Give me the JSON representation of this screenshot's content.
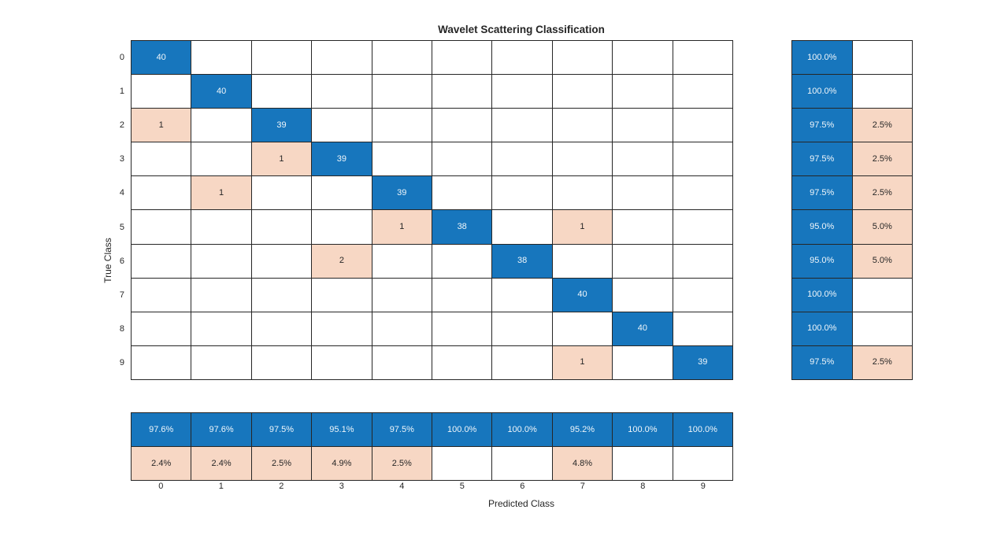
{
  "chart_data": {
    "type": "heatmap",
    "subtype": "confusion-matrix",
    "title": "Wavelet Scattering Classification",
    "xlabel": "Predicted Class",
    "ylabel": "True Class",
    "classes": [
      "0",
      "1",
      "2",
      "3",
      "4",
      "5",
      "6",
      "7",
      "8",
      "9"
    ],
    "matrix": [
      [
        40,
        0,
        0,
        0,
        0,
        0,
        0,
        0,
        0,
        0
      ],
      [
        0,
        40,
        0,
        0,
        0,
        0,
        0,
        0,
        0,
        0
      ],
      [
        1,
        0,
        39,
        0,
        0,
        0,
        0,
        0,
        0,
        0
      ],
      [
        0,
        0,
        1,
        39,
        0,
        0,
        0,
        0,
        0,
        0
      ],
      [
        0,
        1,
        0,
        0,
        39,
        0,
        0,
        0,
        0,
        0
      ],
      [
        0,
        0,
        0,
        0,
        1,
        38,
        0,
        1,
        0,
        0
      ],
      [
        0,
        0,
        0,
        2,
        0,
        0,
        38,
        0,
        0,
        0
      ],
      [
        0,
        0,
        0,
        0,
        0,
        0,
        0,
        40,
        0,
        0
      ],
      [
        0,
        0,
        0,
        0,
        0,
        0,
        0,
        0,
        40,
        0
      ],
      [
        0,
        0,
        0,
        0,
        0,
        0,
        0,
        1,
        0,
        39
      ]
    ],
    "row_summary": {
      "correct": [
        "100.0%",
        "100.0%",
        "97.5%",
        "97.5%",
        "97.5%",
        "95.0%",
        "95.0%",
        "100.0%",
        "100.0%",
        "97.5%"
      ],
      "incorrect": [
        "",
        "",
        "2.5%",
        "2.5%",
        "2.5%",
        "5.0%",
        "5.0%",
        "",
        "",
        "2.5%"
      ]
    },
    "col_summary": {
      "correct": [
        "97.6%",
        "97.6%",
        "97.5%",
        "95.1%",
        "97.5%",
        "100.0%",
        "100.0%",
        "95.2%",
        "100.0%",
        "100.0%"
      ],
      "incorrect": [
        "2.4%",
        "2.4%",
        "2.5%",
        "4.9%",
        "2.5%",
        "",
        "",
        "4.8%",
        "",
        ""
      ]
    },
    "colors": {
      "diagonal": "#1776bd",
      "off_diagonal": "#f7d7c4",
      "empty": "#ffffff",
      "grid_line": "#262626",
      "text_dark": "#262626",
      "text_on_blue": "#f0f6fa"
    },
    "grid": true,
    "legend_position": "none"
  }
}
